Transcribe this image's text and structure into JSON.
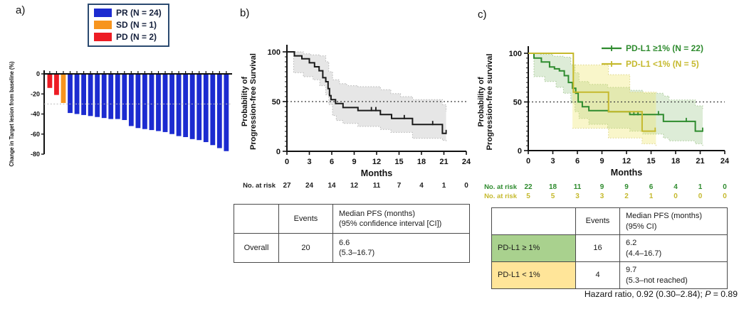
{
  "panels": {
    "a": {
      "label": "a)"
    },
    "b": {
      "label": "b)"
    },
    "c": {
      "label": "c)"
    }
  },
  "chart_data": [
    {
      "id": "waterfall",
      "type": "bar",
      "title": "",
      "xlabel": "",
      "ylabel": "Change in Target lesion from baseline (%)",
      "ylim": [
        -80,
        0
      ],
      "yticks": [
        0,
        -20,
        -40,
        -60,
        -80
      ],
      "reference_line": -30,
      "values": [
        -14,
        -21,
        -29,
        -39,
        -40,
        -41,
        -42,
        -43,
        -44,
        -45,
        -45,
        -46,
        -52,
        -54,
        -55,
        -56,
        -57,
        -58,
        -60,
        -62,
        -63,
        -65,
        -66,
        -68,
        -71,
        -74,
        -77
      ],
      "groups": [
        "PD",
        "PD",
        "SD",
        "PR",
        "PR",
        "PR",
        "PR",
        "PR",
        "PR",
        "PR",
        "PR",
        "PR",
        "PR",
        "PR",
        "PR",
        "PR",
        "PR",
        "PR",
        "PR",
        "PR",
        "PR",
        "PR",
        "PR",
        "PR",
        "PR",
        "PR",
        "PR"
      ],
      "colors": {
        "PR": "#1c2bd0",
        "SD": "#f7941e",
        "PD": "#ed1c24"
      },
      "legend": [
        {
          "label": "PR (N = 24)",
          "key": "PR",
          "color": "#1c2bd0"
        },
        {
          "label": "SD (N = 1)",
          "key": "SD",
          "color": "#f7941e"
        },
        {
          "label": "PD (N = 2)",
          "key": "PD",
          "color": "#ed1c24"
        }
      ]
    },
    {
      "id": "pfs-overall",
      "type": "line",
      "subtype": "kaplan-meier",
      "title": "",
      "xlabel": "Months",
      "ylabel": "Probability of\nProgression-free Survival",
      "xlim": [
        0,
        24
      ],
      "xticks": [
        0,
        3,
        6,
        9,
        12,
        15,
        18,
        21,
        24
      ],
      "yticks": [
        0,
        50,
        100
      ],
      "median_line": 50,
      "series": [
        {
          "name": "Overall",
          "color": "#1a1a1a",
          "band_fill": "rgba(200,200,200,0.45)",
          "band_edge": "#b5b5b5",
          "steps": [
            [
              0,
              100
            ],
            [
              1,
              96
            ],
            [
              2,
              93
            ],
            [
              3,
              89
            ],
            [
              3.7,
              85
            ],
            [
              4.3,
              81
            ],
            [
              4.8,
              74
            ],
            [
              5.2,
              70
            ],
            [
              5.5,
              63
            ],
            [
              5.7,
              56
            ],
            [
              5.9,
              52
            ],
            [
              6.5,
              48
            ],
            [
              7.5,
              44
            ],
            [
              9.5,
              41
            ],
            [
              12.5,
              37
            ],
            [
              14,
              33
            ],
            [
              16.8,
              27
            ],
            [
              20.8,
              18
            ],
            [
              21.3,
              18
            ]
          ],
          "censors": [
            [
              11.3,
              41
            ],
            [
              11.9,
              41
            ],
            [
              15.7,
              33
            ],
            [
              19.5,
              27
            ],
            [
              21.3,
              18
            ]
          ],
          "ci_upper": [
            [
              0,
              100
            ],
            [
              2.2,
              98
            ],
            [
              3.2,
              97
            ],
            [
              4.4,
              96
            ],
            [
              5.2,
              90
            ],
            [
              5.6,
              80
            ],
            [
              6.1,
              72
            ],
            [
              7,
              68
            ],
            [
              8,
              66
            ],
            [
              9.5,
              65
            ],
            [
              12.5,
              62
            ],
            [
              13.9,
              58
            ],
            [
              15.2,
              55
            ],
            [
              16.8,
              52
            ],
            [
              20.8,
              47
            ],
            [
              21.3,
              40
            ]
          ],
          "ci_lower": [
            [
              0,
              100
            ],
            [
              0.9,
              79
            ],
            [
              2.2,
              75
            ],
            [
              3.5,
              72
            ],
            [
              4.4,
              66
            ],
            [
              5.2,
              57
            ],
            [
              5.6,
              47
            ],
            [
              6.1,
              36
            ],
            [
              6.6,
              31
            ],
            [
              7.5,
              28
            ],
            [
              9.5,
              25
            ],
            [
              12.5,
              22
            ],
            [
              13.9,
              19
            ],
            [
              16.8,
              13
            ],
            [
              20.8,
              11
            ],
            [
              21.3,
              10
            ]
          ]
        }
      ],
      "at_risk": {
        "times": [
          0,
          3,
          6,
          9,
          12,
          15,
          18,
          21,
          24
        ],
        "rows": [
          {
            "label": "No. at risk",
            "counts": [
              27,
              24,
              14,
              12,
              11,
              7,
              4,
              1,
              0
            ],
            "color": "#222222"
          }
        ]
      }
    },
    {
      "id": "pfs-by-pdl1",
      "type": "line",
      "subtype": "kaplan-meier",
      "title": "",
      "xlabel": "Months",
      "ylabel": "Probability of\nProgression-free survival",
      "xlim": [
        0,
        24
      ],
      "xticks": [
        0,
        3,
        6,
        9,
        12,
        15,
        18,
        21,
        24
      ],
      "yticks": [
        0,
        50,
        100
      ],
      "median_line": 50,
      "legend": [
        {
          "label": "PD-L1 ≥1% (N = 22)",
          "color": "#2e8b2e"
        },
        {
          "label": "PD-L1 <1% (N = 5)",
          "color": "#c5b92d"
        }
      ],
      "series": [
        {
          "name": "PD-L1 >=1%",
          "color": "#2e8b2e",
          "band_fill": "rgba(143,191,122,0.30)",
          "band_edge": "#a8c896",
          "steps": [
            [
              0,
              100
            ],
            [
              0.7,
              95
            ],
            [
              1.6,
              91
            ],
            [
              2.6,
              86
            ],
            [
              3.2,
              84
            ],
            [
              3.8,
              82
            ],
            [
              4.4,
              77
            ],
            [
              4.9,
              70
            ],
            [
              5.4,
              64
            ],
            [
              5.8,
              59
            ],
            [
              6.1,
              50
            ],
            [
              6.6,
              45
            ],
            [
              7.4,
              41
            ],
            [
              9.8,
              40
            ],
            [
              12.4,
              37
            ],
            [
              16.5,
              30
            ],
            [
              20.4,
              20
            ],
            [
              21.3,
              20
            ]
          ],
          "censors": [
            [
              12.9,
              37
            ],
            [
              13.4,
              37
            ],
            [
              15.9,
              37
            ],
            [
              19.3,
              30
            ],
            [
              21.3,
              20
            ]
          ],
          "ci_upper": [
            [
              0,
              100
            ],
            [
              1.5,
              99
            ],
            [
              3,
              97
            ],
            [
              4.3,
              96
            ],
            [
              5.2,
              88
            ],
            [
              5.7,
              80
            ],
            [
              6.2,
              71
            ],
            [
              7.4,
              68
            ],
            [
              9.7,
              65
            ],
            [
              12.4,
              62
            ],
            [
              14,
              59
            ],
            [
              16.5,
              56
            ],
            [
              17.2,
              52
            ],
            [
              20.4,
              46
            ],
            [
              21.3,
              43
            ]
          ],
          "ci_lower": [
            [
              0,
              100
            ],
            [
              0.7,
              76
            ],
            [
              2,
              71
            ],
            [
              3.4,
              65
            ],
            [
              4.3,
              59
            ],
            [
              5.2,
              49
            ],
            [
              5.7,
              40
            ],
            [
              6.2,
              33
            ],
            [
              7.4,
              27
            ],
            [
              9.7,
              23
            ],
            [
              12.4,
              20
            ],
            [
              14,
              17
            ],
            [
              16.5,
              13
            ],
            [
              17.2,
              10
            ],
            [
              20.4,
              7
            ],
            [
              21.3,
              5
            ]
          ]
        },
        {
          "name": "PD-L1 <1%",
          "color": "#c5b92d",
          "band_fill": "rgba(238,228,102,0.35)",
          "band_edge": "#dcd487",
          "steps": [
            [
              0,
              100
            ],
            [
              5.5,
              60
            ],
            [
              9.8,
              40
            ],
            [
              13.9,
              20
            ],
            [
              15.6,
              20
            ]
          ],
          "censors": [
            [
              15.5,
              20
            ]
          ],
          "ci_upper": [
            [
              5.4,
              88
            ],
            [
              9.8,
              78
            ],
            [
              12.4,
              60
            ],
            [
              15.6,
              58
            ]
          ],
          "ci_lower": [
            [
              5.4,
              23
            ],
            [
              9.8,
              13
            ],
            [
              13.9,
              7
            ],
            [
              15.6,
              4
            ]
          ]
        }
      ],
      "at_risk": {
        "times": [
          0,
          3,
          6,
          9,
          12,
          15,
          18,
          21,
          24
        ],
        "rows": [
          {
            "label": "No. at risk",
            "counts": [
              22,
              18,
              11,
              9,
              9,
              6,
              4,
              1,
              0
            ],
            "color": "#2e8b2e"
          },
          {
            "label": "No. at risk",
            "counts": [
              5,
              5,
              3,
              3,
              2,
              1,
              0,
              0,
              0
            ],
            "color": "#c5b92d"
          }
        ]
      }
    }
  ],
  "tables": {
    "b": {
      "headers": [
        "",
        "Events",
        "Median PFS (months)\n(95% confidence interval [CI])"
      ],
      "rows": [
        {
          "label": "Overall",
          "events": "20",
          "median": "6.6\n(5.3–16.7)"
        }
      ]
    },
    "c": {
      "headers": [
        "",
        "Events",
        "Median PFS (months)\n(95% CI)"
      ],
      "rows": [
        {
          "label": "PD-L1 ≥ 1%",
          "events": "16",
          "median": "6.2\n(4.4–16.7)",
          "bg": "#a9d18e"
        },
        {
          "label": "PD-L1 < 1%",
          "events": "4",
          "median": "9.7\n(5.3–not reached)",
          "bg": "#ffe599"
        }
      ]
    }
  },
  "footnote": {
    "text_before_p": "Hazard ratio, 0.92 (0.30–2.84); ",
    "p": "P",
    "text_after_p": " = 0.89"
  }
}
